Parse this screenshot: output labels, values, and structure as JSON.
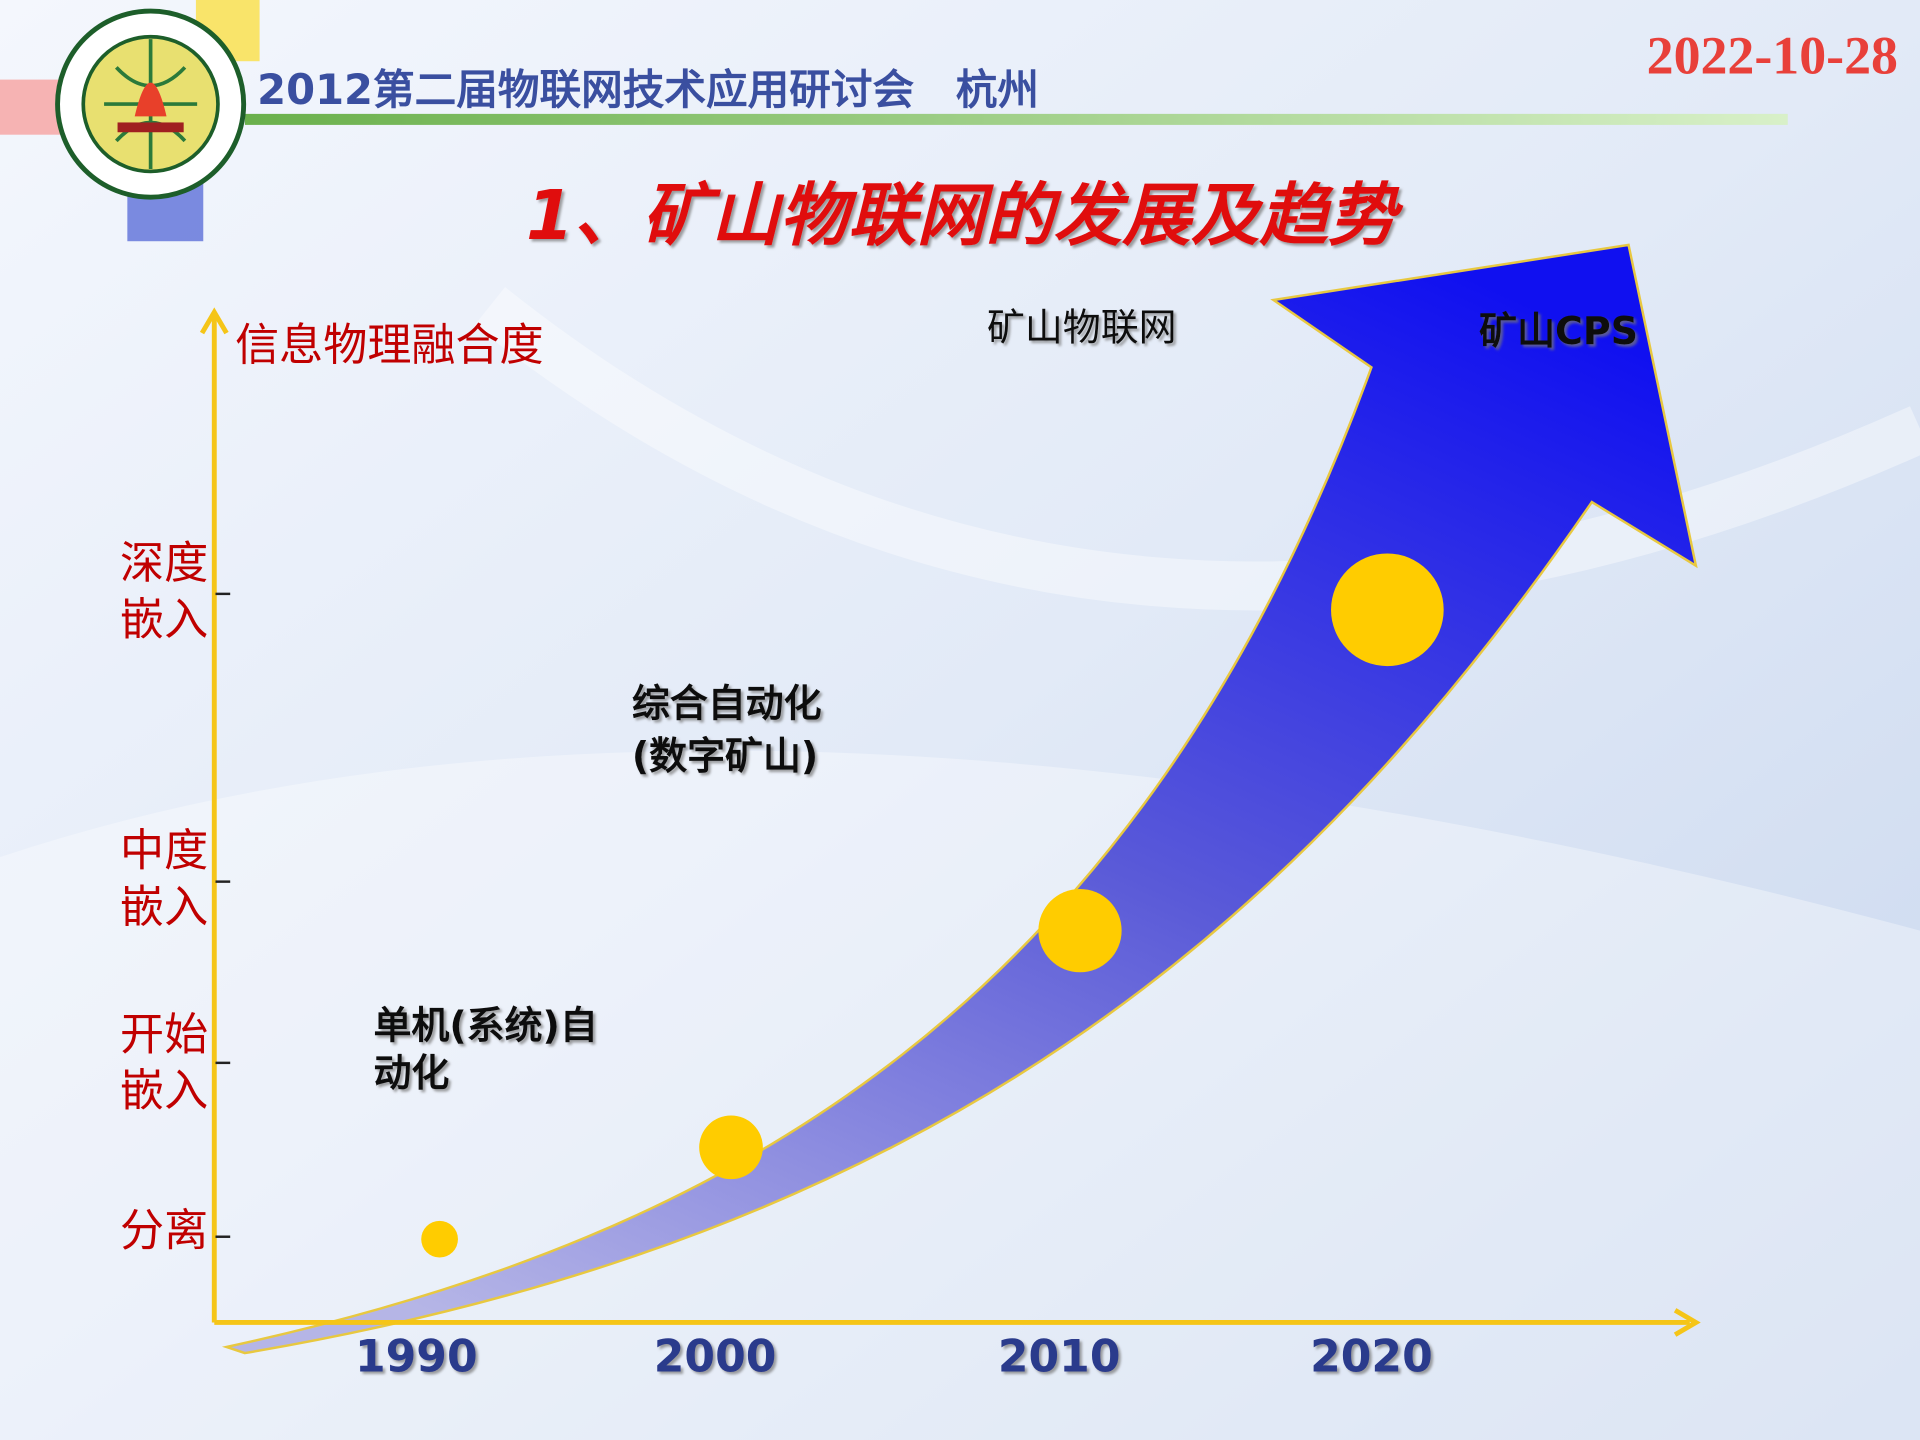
{
  "header": {
    "conference": "2012第二届物联网技术应用研讨会　杭州",
    "date": "2022-10-28"
  },
  "title": "1、矿山物联网的发展及趋势",
  "y_axis": {
    "label": "信息物理融合度",
    "levels": [
      [
        "深度",
        "嵌入"
      ],
      [
        "中度",
        "嵌入"
      ],
      [
        "开始",
        "嵌入"
      ],
      [
        "分离"
      ]
    ]
  },
  "x_axis": {
    "labels": [
      "1990",
      "2000",
      "2010",
      "2020"
    ]
  },
  "stages": [
    {
      "label": [
        "单机(系统)自",
        "动化"
      ]
    },
    {
      "label": [
        "综合自动化",
        "(数字矿山)"
      ]
    },
    {
      "label": [
        "矿山物联网"
      ]
    },
    {
      "label": [
        "矿山CPS"
      ]
    }
  ]
}
